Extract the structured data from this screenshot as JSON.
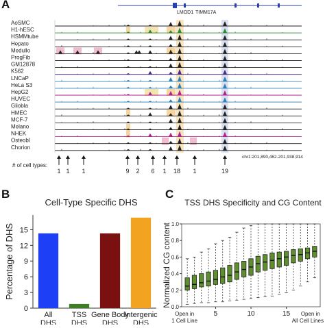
{
  "panels": {
    "a": {
      "letter": "A",
      "genes": [
        "LMOD1",
        "TIMM17A"
      ],
      "tracks": [
        {
          "label": "AoSMC",
          "color": "#222222"
        },
        {
          "label": "H1-hESC",
          "color": "#2e8b3a"
        },
        {
          "label": "HSMMtube",
          "color": "#222222"
        },
        {
          "label": "Hepato",
          "color": "#222222"
        },
        {
          "label": "Medullo",
          "color": "#222222"
        },
        {
          "label": "ProgFib",
          "color": "#222222"
        },
        {
          "label": "GM12878",
          "color": "#222222"
        },
        {
          "label": "K562",
          "color": "#4b2a8a"
        },
        {
          "label": "LNCaP",
          "color": "#2d7fb8"
        },
        {
          "label": "HeLa S3",
          "color": "#2d7fb8"
        },
        {
          "label": "HepG2",
          "color": "#b0228c"
        },
        {
          "label": "HUVEC",
          "color": "#2d7fb8"
        },
        {
          "label": "Gliobla",
          "color": "#222222"
        },
        {
          "label": "HMEC",
          "color": "#222222"
        },
        {
          "label": "MCF-7",
          "color": "#222222"
        },
        {
          "label": "Melano",
          "color": "#222222"
        },
        {
          "label": "NHEK",
          "color": "#b0228c"
        },
        {
          "label": "Osteobl",
          "color": "#222222"
        },
        {
          "label": "Chorion",
          "color": "#222222"
        }
      ],
      "cell_types_label": "# of cell types:",
      "cell_type_counts": [
        "1",
        "1",
        "1",
        "9",
        "2",
        "6",
        "1",
        "18",
        "1",
        "19"
      ],
      "coordinates": "chr1:201,890,462-201,938,914"
    },
    "b": {
      "letter": "B",
      "chart_data": {
        "type": "bar",
        "title": "Cell-Type Specific DHS",
        "ylabel": "Percentage of DHS",
        "ylim": [
          0,
          18
        ],
        "yticks": [
          "0",
          "3",
          "6",
          "9",
          "12",
          "15"
        ],
        "categories": [
          "All DHS",
          "TSS DHS",
          "Gene Body DHS",
          "Intergenic DHS"
        ],
        "category_lines": [
          [
            "All",
            "DHS"
          ],
          [
            "TSS",
            "DHS"
          ],
          [
            "Gene Body",
            "DHS"
          ],
          [
            "Intergenic",
            "DHS"
          ]
        ],
        "values": [
          14.3,
          0.8,
          14.3,
          17.3
        ],
        "colors": [
          "#1d3ff5",
          "#3f7f24",
          "#7a1010",
          "#f2a31f"
        ]
      }
    },
    "c": {
      "letter": "C",
      "chart_data": {
        "type": "box",
        "title": "TSS DHS Specificity and CG Content",
        "ylabel": "Normalized CG content",
        "ylim": [
          0,
          1.0
        ],
        "yticks": [
          "0.0",
          "0.2",
          "0.4",
          "0.6",
          "0.8",
          "1.0"
        ],
        "xticks": [
          "5",
          "10",
          "15"
        ],
        "x_end_labels": [
          [
            "Open in",
            "1 Cell Line"
          ],
          [
            "Open in",
            "All Cell Lines"
          ]
        ],
        "box_color": "#5f8e2e",
        "boxes": [
          {
            "x": 1,
            "q1": 0.2,
            "median": 0.25,
            "q3": 0.35,
            "whisker_low": 0.03,
            "whisker_high": 0.58
          },
          {
            "x": 2,
            "q1": 0.22,
            "median": 0.27,
            "q3": 0.38,
            "whisker_low": 0.04,
            "whisker_high": 0.6
          },
          {
            "x": 3,
            "q1": 0.24,
            "median": 0.29,
            "q3": 0.4,
            "whisker_low": 0.05,
            "whisker_high": 0.66
          },
          {
            "x": 4,
            "q1": 0.25,
            "median": 0.31,
            "q3": 0.42,
            "whisker_low": 0.05,
            "whisker_high": 0.7
          },
          {
            "x": 5,
            "q1": 0.27,
            "median": 0.33,
            "q3": 0.44,
            "whisker_low": 0.06,
            "whisker_high": 0.76
          },
          {
            "x": 6,
            "q1": 0.28,
            "median": 0.36,
            "q3": 0.47,
            "whisker_low": 0.06,
            "whisker_high": 0.8
          },
          {
            "x": 7,
            "q1": 0.3,
            "median": 0.38,
            "q3": 0.5,
            "whisker_low": 0.07,
            "whisker_high": 0.84
          },
          {
            "x": 8,
            "q1": 0.33,
            "median": 0.42,
            "q3": 0.53,
            "whisker_low": 0.08,
            "whisker_high": 0.9
          },
          {
            "x": 9,
            "q1": 0.36,
            "median": 0.45,
            "q3": 0.55,
            "whisker_low": 0.09,
            "whisker_high": 0.95
          },
          {
            "x": 10,
            "q1": 0.38,
            "median": 0.48,
            "q3": 0.58,
            "whisker_low": 0.1,
            "whisker_high": 0.98
          },
          {
            "x": 11,
            "q1": 0.42,
            "median": 0.52,
            "q3": 0.61,
            "whisker_low": 0.11,
            "whisker_high": 1.0
          },
          {
            "x": 12,
            "q1": 0.44,
            "median": 0.54,
            "q3": 0.63,
            "whisker_low": 0.12,
            "whisker_high": 1.0
          },
          {
            "x": 13,
            "q1": 0.46,
            "median": 0.56,
            "q3": 0.65,
            "whisker_low": 0.13,
            "whisker_high": 1.0
          },
          {
            "x": 14,
            "q1": 0.48,
            "median": 0.58,
            "q3": 0.66,
            "whisker_low": 0.15,
            "whisker_high": 1.0
          },
          {
            "x": 15,
            "q1": 0.5,
            "median": 0.6,
            "q3": 0.67,
            "whisker_low": 0.17,
            "whisker_high": 1.0
          },
          {
            "x": 16,
            "q1": 0.53,
            "median": 0.62,
            "q3": 0.69,
            "whisker_low": 0.2,
            "whisker_high": 1.0
          },
          {
            "x": 17,
            "q1": 0.55,
            "median": 0.63,
            "q3": 0.7,
            "whisker_low": 0.25,
            "whisker_high": 1.0
          },
          {
            "x": 18,
            "q1": 0.58,
            "median": 0.65,
            "q3": 0.71,
            "whisker_low": 0.3,
            "whisker_high": 1.0
          },
          {
            "x": 19,
            "q1": 0.6,
            "median": 0.67,
            "q3": 0.73,
            "whisker_low": 0.35,
            "whisker_high": 1.0
          }
        ]
      }
    }
  }
}
